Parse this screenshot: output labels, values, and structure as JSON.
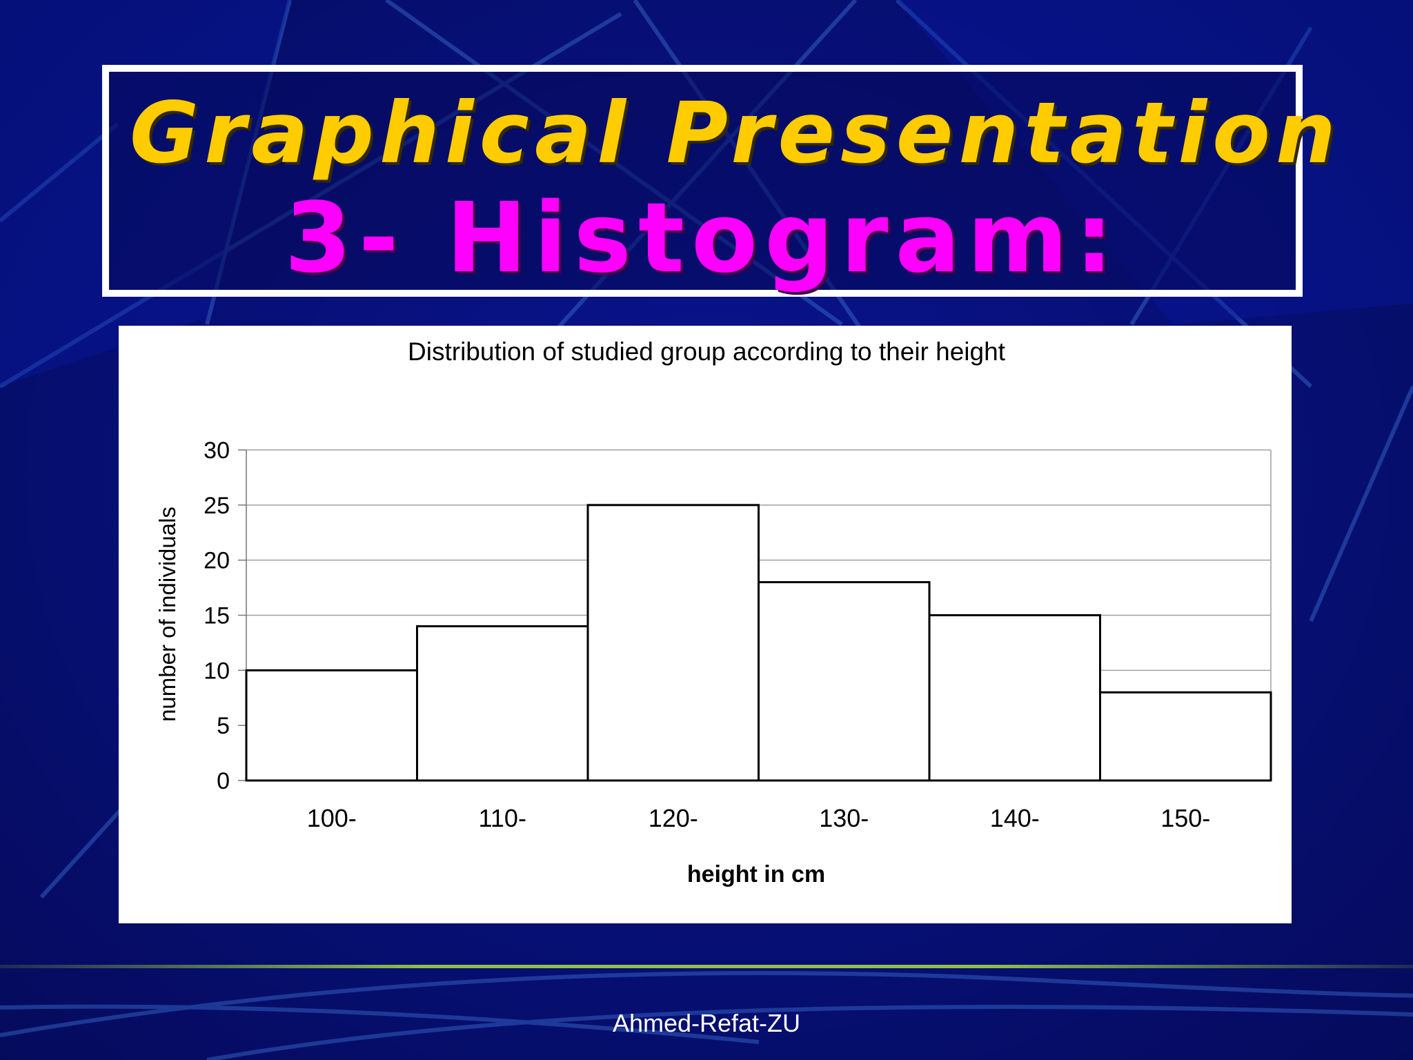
{
  "slide": {
    "title": "Graphical Presentation",
    "subtitle": "3- Histogram:",
    "footer": "Ahmed-Refat-ZU"
  },
  "colors": {
    "background": "#07107a",
    "title": "#ffcc00",
    "subtitle": "#ff00ff",
    "bar_fill": "#ffffff",
    "bar_stroke": "#000000",
    "footer_rule": "#8fbf4a"
  },
  "chart_data": {
    "type": "bar",
    "title": "Distribution of studied group according to their height",
    "xlabel": "height in cm",
    "ylabel": "number of individuals",
    "categories": [
      "100-",
      "110-",
      "120-",
      "130-",
      "140-",
      "150-"
    ],
    "values": [
      10,
      14,
      25,
      18,
      15,
      8
    ],
    "ylim": [
      0,
      30
    ],
    "yticks": [
      0,
      5,
      10,
      15,
      20,
      25,
      30
    ],
    "grid": true,
    "legend": "none"
  }
}
